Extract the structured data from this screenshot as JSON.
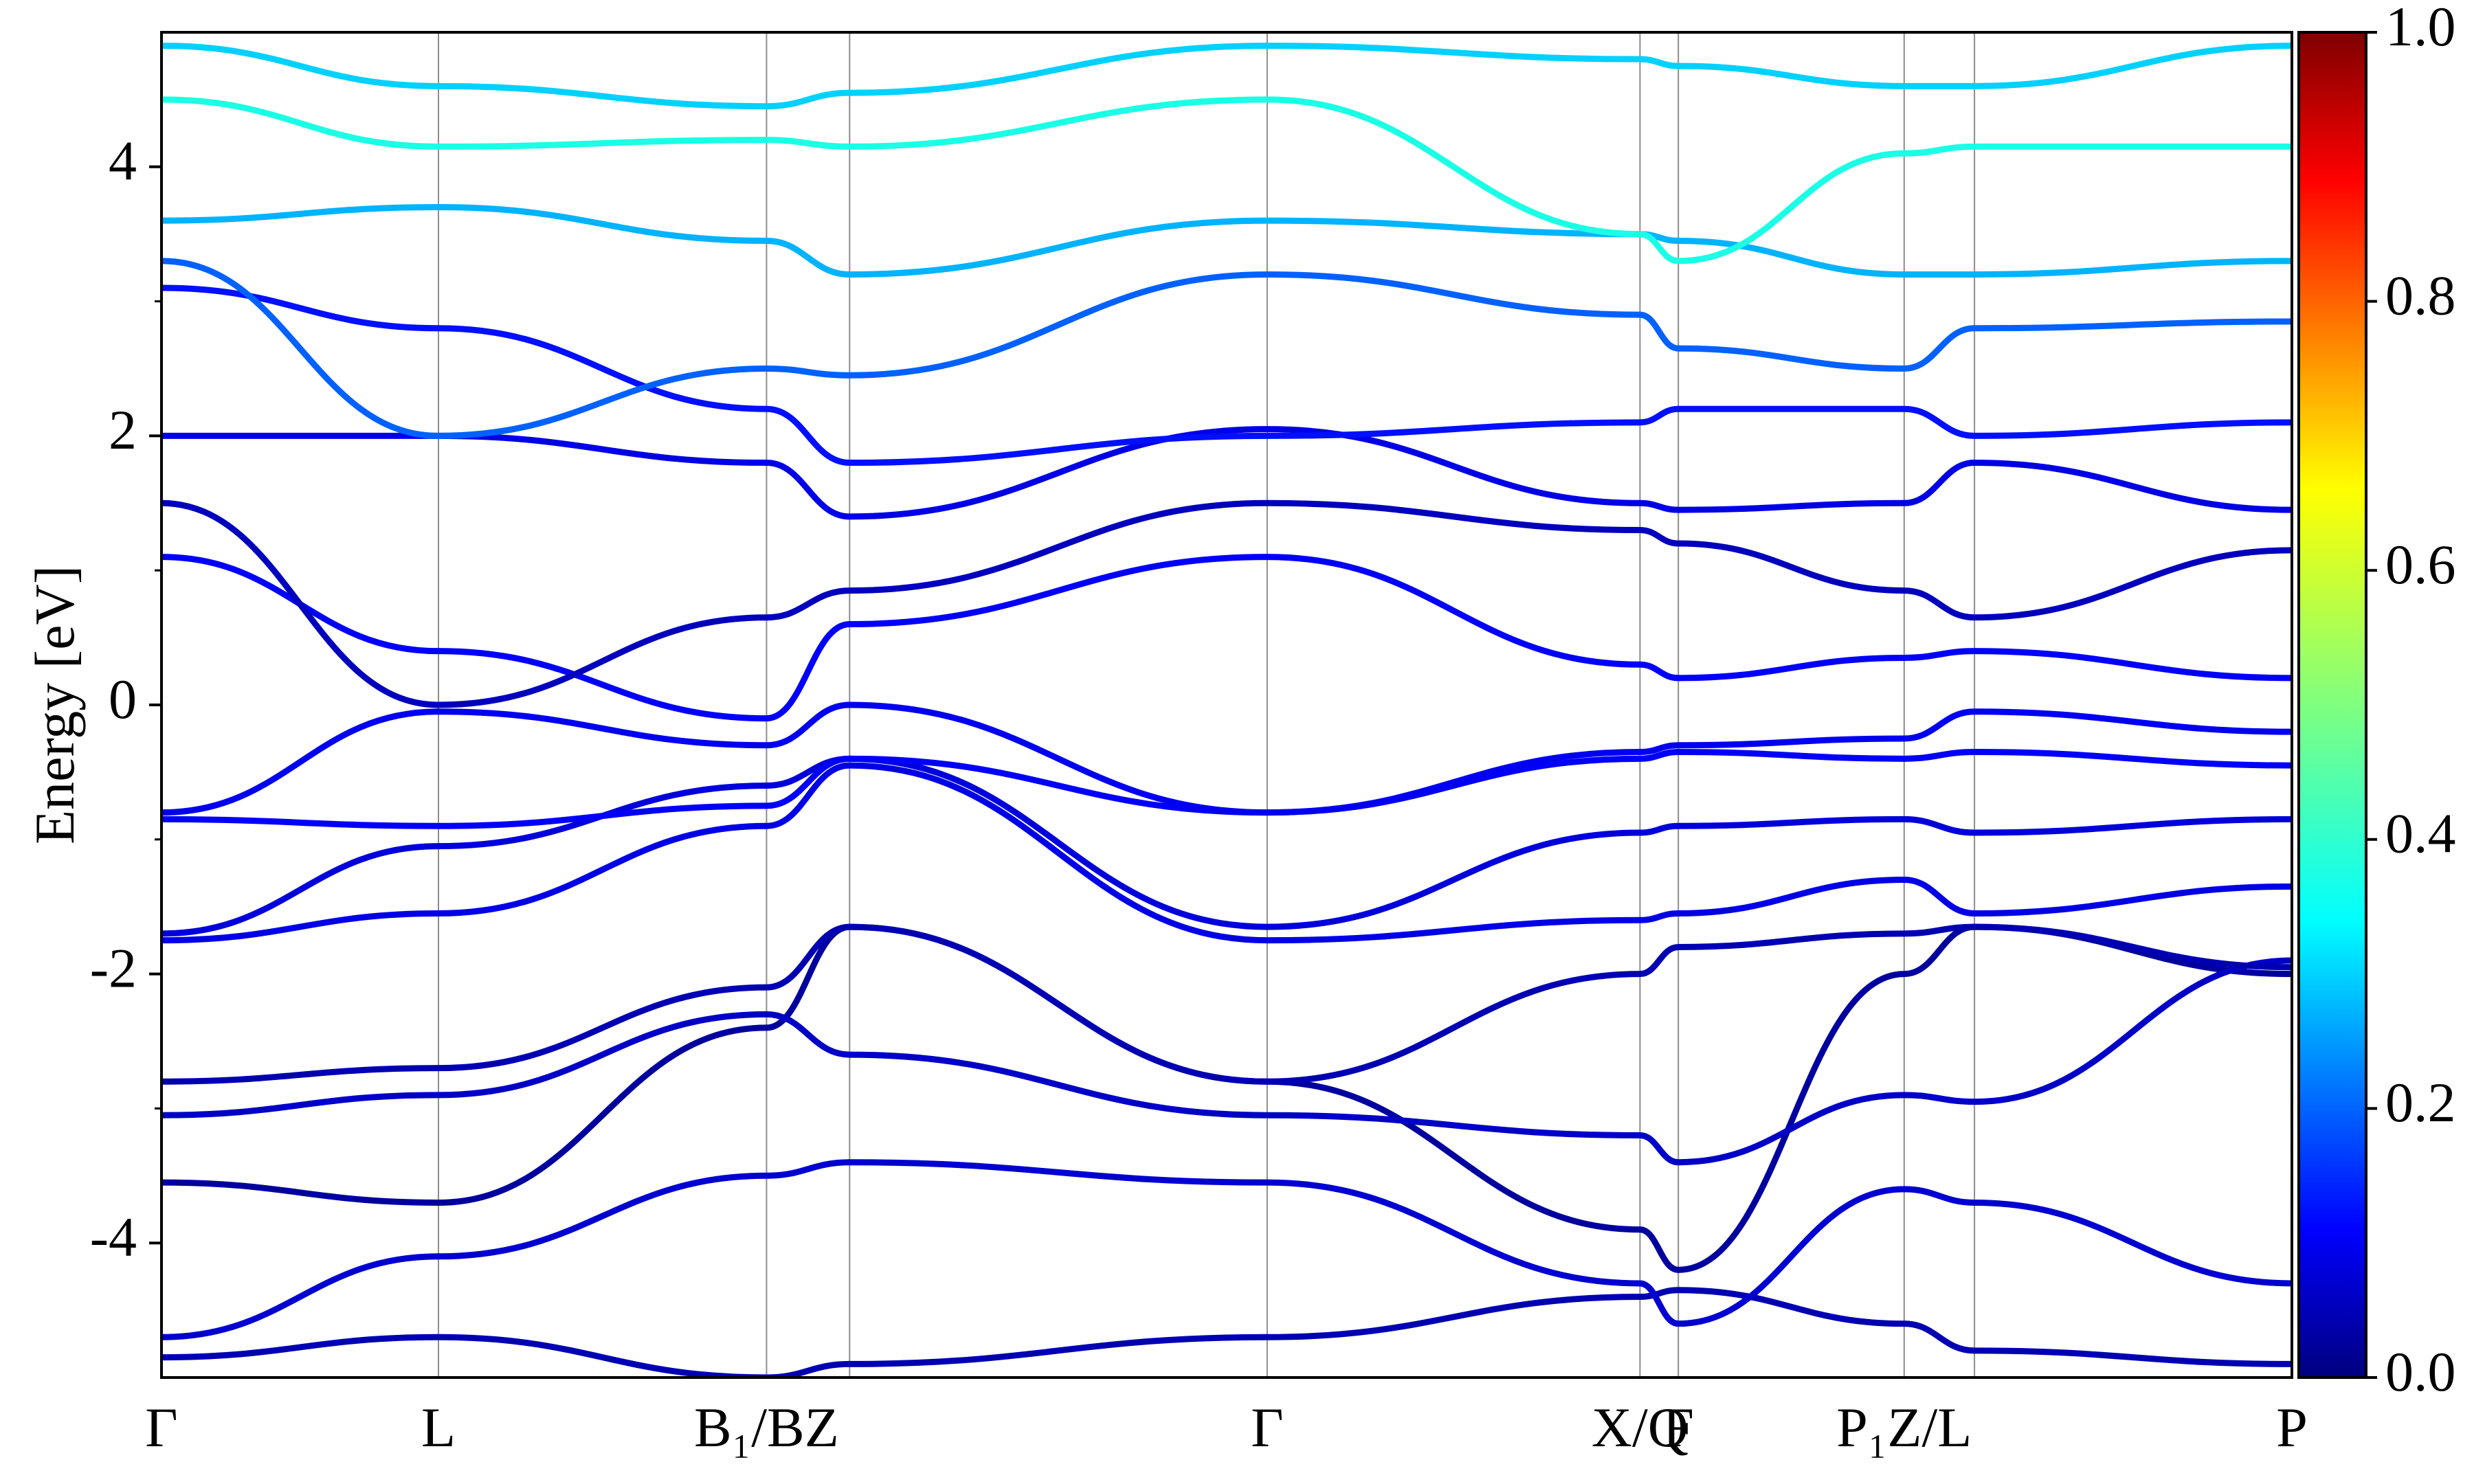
{
  "chart_data": {
    "type": "line",
    "title": "",
    "xlabel": "",
    "ylabel": "Energy [eV]",
    "ylim": [
      -5,
      5
    ],
    "y_ticks": [
      "-4",
      "-2",
      "0",
      "2",
      "4"
    ],
    "y_tick_values": [
      -4,
      -2,
      0,
      2,
      4
    ],
    "x_kpoints": [
      {
        "label": "Γ",
        "pos": 0.0
      },
      {
        "label": "L",
        "pos": 0.13
      },
      {
        "label": "B₁/BZ",
        "pos": 0.284
      },
      {
        "label": "",
        "pos": 0.323
      },
      {
        "label": "Γ",
        "pos": 0.519
      },
      {
        "label": "X/Q",
        "pos": 0.694
      },
      {
        "label": "F",
        "pos": 0.712
      },
      {
        "label": "P₁Z/L",
        "pos": 0.818
      },
      {
        "label": "",
        "pos": 0.851
      },
      {
        "label": "P",
        "pos": 1.0
      }
    ],
    "colorbar": {
      "min": 0.0,
      "max": 1.0,
      "ticks": [
        "0.0",
        "0.2",
        "0.4",
        "0.6",
        "0.8",
        "1.0"
      ],
      "colormap": "jet"
    },
    "series": [
      {
        "x": [
          0,
          0.13,
          0.284,
          0.323,
          0.519,
          0.694,
          0.712,
          0.818,
          0.851,
          1.0
        ],
        "y": [
          -4.85,
          -4.7,
          -5.0,
          -4.9,
          -4.7,
          -4.4,
          -4.35,
          -4.6,
          -4.8,
          -4.9
        ],
        "c": 0.05
      },
      {
        "x": [
          0,
          0.13,
          0.284,
          0.323,
          0.519,
          0.694,
          0.712,
          0.818,
          0.851,
          1.0
        ],
        "y": [
          -4.7,
          -4.1,
          -3.5,
          -3.4,
          -3.55,
          -4.3,
          -4.6,
          -3.6,
          -3.7,
          -4.3
        ],
        "c": 0.08
      },
      {
        "x": [
          0,
          0.13,
          0.284,
          0.323,
          0.519,
          0.694,
          0.712,
          0.818,
          0.851,
          1.0
        ],
        "y": [
          -3.55,
          -3.7,
          -2.4,
          -1.65,
          -2.8,
          -3.9,
          -4.2,
          -2.0,
          -1.65,
          -2.0
        ],
        "c": 0.03
      },
      {
        "x": [
          0,
          0.13,
          0.284,
          0.323,
          0.519,
          0.694,
          0.712,
          0.818,
          0.851,
          1.0
        ],
        "y": [
          -3.05,
          -2.9,
          -2.3,
          -2.6,
          -3.05,
          -3.2,
          -3.4,
          -2.9,
          -2.95,
          -1.9
        ],
        "c": 0.07
      },
      {
        "x": [
          0,
          0.13,
          0.284,
          0.323,
          0.519,
          0.694,
          0.712,
          0.818,
          0.851,
          1.0
        ],
        "y": [
          -2.8,
          -2.7,
          -2.1,
          -1.65,
          -2.8,
          -2.0,
          -1.8,
          -1.7,
          -1.65,
          -1.95
        ],
        "c": 0.05
      },
      {
        "x": [
          0,
          0.13,
          0.284,
          0.323,
          0.519,
          0.694,
          0.712,
          0.818,
          0.851,
          1.0
        ],
        "y": [
          -1.75,
          -1.55,
          -0.9,
          -0.45,
          -1.75,
          -1.6,
          -1.55,
          -1.3,
          -1.55,
          -1.35
        ],
        "c": 0.1
      },
      {
        "x": [
          0,
          0.13,
          0.284,
          0.323,
          0.519,
          0.694,
          0.712,
          0.818,
          0.851,
          1.0
        ],
        "y": [
          -1.7,
          -1.05,
          -0.6,
          -0.4,
          -1.65,
          -0.95,
          -0.9,
          -0.85,
          -0.95,
          -0.85
        ],
        "c": 0.09
      },
      {
        "x": [
          0,
          0.13,
          0.284,
          0.323,
          0.519,
          0.694,
          0.712,
          0.818,
          0.851,
          1.0
        ],
        "y": [
          -0.85,
          -0.9,
          -0.75,
          -0.4,
          -0.8,
          -0.4,
          -0.35,
          -0.4,
          -0.35,
          -0.45
        ],
        "c": 0.12
      },
      {
        "x": [
          0,
          0.13,
          0.284,
          0.323,
          0.519,
          0.694,
          0.712,
          0.818,
          0.851,
          1.0
        ],
        "y": [
          -0.8,
          -0.05,
          -0.3,
          0.0,
          -0.8,
          -0.35,
          -0.3,
          -0.25,
          -0.05,
          -0.2
        ],
        "c": 0.11
      },
      {
        "x": [
          0,
          0.13,
          0.284,
          0.323,
          0.519,
          0.694,
          0.712,
          0.818,
          0.851,
          1.0
        ],
        "y": [
          1.1,
          0.4,
          -0.1,
          0.6,
          1.1,
          0.3,
          0.2,
          0.35,
          0.4,
          0.2
        ],
        "c": 0.12
      },
      {
        "x": [
          0,
          0.13,
          0.284,
          0.323,
          0.519,
          0.694,
          0.712,
          0.818,
          0.851,
          1.0
        ],
        "y": [
          1.5,
          0.0,
          0.65,
          0.85,
          1.5,
          1.3,
          1.2,
          0.85,
          0.65,
          1.15
        ],
        "c": 0.06
      },
      {
        "x": [
          0,
          0.13,
          0.284,
          0.323,
          0.519,
          0.694,
          0.712,
          0.818,
          0.851,
          1.0
        ],
        "y": [
          2.0,
          2.0,
          1.8,
          1.4,
          2.05,
          1.5,
          1.45,
          1.5,
          1.8,
          1.45
        ],
        "c": 0.1
      },
      {
        "x": [
          0,
          0.13,
          0.284,
          0.323,
          0.519,
          0.694,
          0.712,
          0.818,
          0.851,
          1.0
        ],
        "y": [
          3.1,
          2.8,
          2.2,
          1.8,
          2.0,
          2.1,
          2.2,
          2.2,
          2.0,
          2.1
        ],
        "c": 0.14
      },
      {
        "x": [
          0,
          0.13,
          0.284,
          0.323,
          0.519,
          0.694,
          0.712,
          0.818,
          0.851,
          1.0
        ],
        "y": [
          3.3,
          2.0,
          2.5,
          2.45,
          3.2,
          2.9,
          2.65,
          2.5,
          2.8,
          2.85
        ],
        "c": 0.22
      },
      {
        "x": [
          0,
          0.13,
          0.284,
          0.323,
          0.519,
          0.694,
          0.712,
          0.818,
          0.851,
          1.0
        ],
        "y": [
          3.6,
          3.7,
          3.45,
          3.2,
          3.6,
          3.5,
          3.45,
          3.2,
          3.2,
          3.3
        ],
        "c": 0.3
      },
      {
        "x": [
          0,
          0.13,
          0.284,
          0.323,
          0.519,
          0.694,
          0.712,
          0.818,
          0.851,
          1.0
        ],
        "y": [
          4.5,
          4.15,
          4.2,
          4.15,
          4.5,
          3.5,
          3.3,
          4.1,
          4.15,
          4.15
        ],
        "c": 0.4
      },
      {
        "x": [
          0,
          0.13,
          0.284,
          0.323,
          0.519,
          0.694,
          0.712,
          0.818,
          0.851,
          1.0
        ],
        "y": [
          4.9,
          4.6,
          4.45,
          4.55,
          4.9,
          4.8,
          4.75,
          4.6,
          4.6,
          4.9
        ],
        "c": 0.33
      }
    ]
  }
}
